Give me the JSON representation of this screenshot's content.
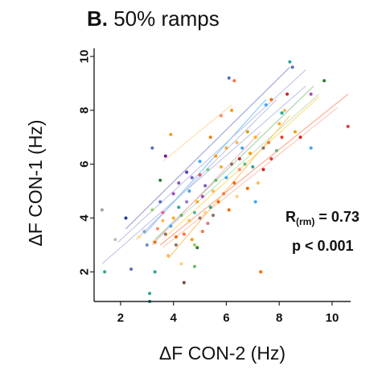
{
  "title_prefix": "B.",
  "title_text": " 50% ramps",
  "stats": {
    "r_label": "R",
    "r_sub": "(rm)",
    "r_value": " = 0.73",
    "p_text": "p < 0.001"
  },
  "chart_data": {
    "type": "scatter",
    "xlabel": "ΔF CON-2  (Hz)",
    "ylabel": "ΔF CON-1  (Hz)",
    "xlim": [
      1.0,
      10.7
    ],
    "ylim": [
      0.9,
      10.3
    ],
    "xticks": [
      2,
      4,
      6,
      8,
      10
    ],
    "yticks": [
      2,
      4,
      6,
      8,
      10
    ],
    "grid": false,
    "points": [
      {
        "x": 1.3,
        "y": 4.3,
        "c": "#95a5a6"
      },
      {
        "x": 1.4,
        "y": 2.0,
        "c": "#26a69a"
      },
      {
        "x": 1.8,
        "y": 3.2,
        "c": "#bdbdbd"
      },
      {
        "x": 2.2,
        "y": 4.0,
        "c": "#283593"
      },
      {
        "x": 2.4,
        "y": 2.1,
        "c": "#5c6bc0"
      },
      {
        "x": 2.7,
        "y": 3.3,
        "c": "#ffe082"
      },
      {
        "x": 2.9,
        "y": 3.5,
        "c": "#90a4ae"
      },
      {
        "x": 3.0,
        "y": 3.0,
        "c": "#7986cb"
      },
      {
        "x": 3.1,
        "y": 1.2,
        "c": "#26a69a"
      },
      {
        "x": 3.1,
        "y": 0.9,
        "c": "#00838f"
      },
      {
        "x": 3.2,
        "y": 4.3,
        "c": "#9ccc65"
      },
      {
        "x": 3.2,
        "y": 6.6,
        "c": "#5c6bc0"
      },
      {
        "x": 3.3,
        "y": 2.0,
        "c": "#26a69a"
      },
      {
        "x": 3.3,
        "y": 3.1,
        "c": "#ef6c00"
      },
      {
        "x": 3.4,
        "y": 3.6,
        "c": "#ff8a65"
      },
      {
        "x": 3.5,
        "y": 5.4,
        "c": "#2e7d32"
      },
      {
        "x": 3.5,
        "y": 4.6,
        "c": "#5c6bc0"
      },
      {
        "x": 3.6,
        "y": 3.9,
        "c": "#ffb74d"
      },
      {
        "x": 3.6,
        "y": 4.2,
        "c": "#f06292"
      },
      {
        "x": 3.7,
        "y": 6.3,
        "c": "#6a1b9a"
      },
      {
        "x": 3.7,
        "y": 3.4,
        "c": "#8d6e63"
      },
      {
        "x": 3.8,
        "y": 2.6,
        "c": "#ffb74d"
      },
      {
        "x": 3.9,
        "y": 3.7,
        "c": "#42a5f5"
      },
      {
        "x": 3.9,
        "y": 7.1,
        "c": "#ff9800"
      },
      {
        "x": 4.0,
        "y": 4.0,
        "c": "#ffa726"
      },
      {
        "x": 4.0,
        "y": 4.9,
        "c": "#ab47bc"
      },
      {
        "x": 4.1,
        "y": 3.3,
        "c": "#ef6c00"
      },
      {
        "x": 4.1,
        "y": 3.0,
        "c": "#8d6e63"
      },
      {
        "x": 4.2,
        "y": 5.3,
        "c": "#7e57c2"
      },
      {
        "x": 4.2,
        "y": 4.4,
        "c": "#26a69a"
      },
      {
        "x": 4.3,
        "y": 2.3,
        "c": "#ffcc80"
      },
      {
        "x": 4.3,
        "y": 4.1,
        "c": "#66bb6a"
      },
      {
        "x": 4.4,
        "y": 1.6,
        "c": "#6d4c41"
      },
      {
        "x": 4.4,
        "y": 3.4,
        "c": "#ff7043"
      },
      {
        "x": 4.5,
        "y": 5.7,
        "c": "#5e35b1"
      },
      {
        "x": 4.5,
        "y": 4.6,
        "c": "#9575cd"
      },
      {
        "x": 4.6,
        "y": 5.0,
        "c": "#42a5f5"
      },
      {
        "x": 4.6,
        "y": 3.9,
        "c": "#ffb74d"
      },
      {
        "x": 4.7,
        "y": 3.2,
        "c": "#ff9800"
      },
      {
        "x": 4.7,
        "y": 5.5,
        "c": "#7e57c2"
      },
      {
        "x": 4.8,
        "y": 4.2,
        "c": "#4db6ac"
      },
      {
        "x": 4.8,
        "y": 2.2,
        "c": "#66bb6a"
      },
      {
        "x": 4.8,
        "y": 3.0,
        "c": "#9ccc65"
      },
      {
        "x": 4.9,
        "y": 2.9,
        "c": "#2e7d32"
      },
      {
        "x": 4.9,
        "y": 4.6,
        "c": "#ffa726"
      },
      {
        "x": 5.0,
        "y": 5.6,
        "c": "#ef5350"
      },
      {
        "x": 5.0,
        "y": 6.1,
        "c": "#42a5f5"
      },
      {
        "x": 5.0,
        "y": 4.0,
        "c": "#8d6e63"
      },
      {
        "x": 5.1,
        "y": 4.8,
        "c": "#ab47bc"
      },
      {
        "x": 5.1,
        "y": 3.5,
        "c": "#ff7043"
      },
      {
        "x": 5.2,
        "y": 5.2,
        "c": "#7e57c2"
      },
      {
        "x": 5.2,
        "y": 4.2,
        "c": "#ffcc80"
      },
      {
        "x": 5.3,
        "y": 5.8,
        "c": "#81c784"
      },
      {
        "x": 5.3,
        "y": 3.8,
        "c": "#e57373"
      },
      {
        "x": 5.4,
        "y": 7.0,
        "c": "#f57c00"
      },
      {
        "x": 5.4,
        "y": 4.4,
        "c": "#26a69a"
      },
      {
        "x": 5.5,
        "y": 5.0,
        "c": "#ffb74d"
      },
      {
        "x": 5.5,
        "y": 4.1,
        "c": "#8d6e63"
      },
      {
        "x": 5.6,
        "y": 6.3,
        "c": "#ff9800"
      },
      {
        "x": 5.6,
        "y": 5.4,
        "c": "#66bb6a"
      },
      {
        "x": 5.7,
        "y": 4.6,
        "c": "#ef6c00"
      },
      {
        "x": 5.8,
        "y": 7.8,
        "c": "#ff8a65"
      },
      {
        "x": 5.8,
        "y": 5.9,
        "c": "#ffa726"
      },
      {
        "x": 5.9,
        "y": 4.9,
        "c": "#ff7043"
      },
      {
        "x": 6.0,
        "y": 6.6,
        "c": "#f9a825"
      },
      {
        "x": 6.0,
        "y": 5.5,
        "c": "#42a5f5"
      },
      {
        "x": 6.1,
        "y": 4.3,
        "c": "#ef6c00"
      },
      {
        "x": 6.1,
        "y": 9.2,
        "c": "#5c6bc0"
      },
      {
        "x": 6.2,
        "y": 8.0,
        "c": "#ff9800"
      },
      {
        "x": 6.2,
        "y": 6.0,
        "c": "#8d6e63"
      },
      {
        "x": 6.3,
        "y": 9.1,
        "c": "#ff7043"
      },
      {
        "x": 6.3,
        "y": 5.3,
        "c": "#ef6c00"
      },
      {
        "x": 6.4,
        "y": 6.8,
        "c": "#ffb74d"
      },
      {
        "x": 6.4,
        "y": 4.8,
        "c": "#ffcc80"
      },
      {
        "x": 6.5,
        "y": 6.2,
        "c": "#c62828"
      },
      {
        "x": 6.5,
        "y": 5.8,
        "c": "#ff8a65"
      },
      {
        "x": 6.6,
        "y": 6.6,
        "c": "#42a5f5"
      },
      {
        "x": 6.7,
        "y": 6.0,
        "c": "#66bb6a"
      },
      {
        "x": 6.8,
        "y": 7.2,
        "c": "#d4a017"
      },
      {
        "x": 6.8,
        "y": 5.1,
        "c": "#ef6c00"
      },
      {
        "x": 6.9,
        "y": 6.4,
        "c": "#ff9800"
      },
      {
        "x": 7.0,
        "y": 5.9,
        "c": "#26a69a"
      },
      {
        "x": 7.1,
        "y": 7.0,
        "c": "#ffa726"
      },
      {
        "x": 7.1,
        "y": 4.6,
        "c": "#42a5f5"
      },
      {
        "x": 7.2,
        "y": 5.3,
        "c": "#ffb74d"
      },
      {
        "x": 7.3,
        "y": 2.0,
        "c": "#ef6c00"
      },
      {
        "x": 7.4,
        "y": 5.8,
        "c": "#c62828"
      },
      {
        "x": 7.4,
        "y": 6.6,
        "c": "#8d6e63"
      },
      {
        "x": 7.5,
        "y": 8.2,
        "c": "#42a5f5"
      },
      {
        "x": 7.6,
        "y": 6.8,
        "c": "#ff7043"
      },
      {
        "x": 7.7,
        "y": 6.2,
        "c": "#e53935"
      },
      {
        "x": 7.7,
        "y": 8.4,
        "c": "#ef6c00"
      },
      {
        "x": 7.9,
        "y": 6.5,
        "c": "#66bb6a"
      },
      {
        "x": 8.0,
        "y": 7.5,
        "c": "#ffa726"
      },
      {
        "x": 8.1,
        "y": 7.0,
        "c": "#e53935"
      },
      {
        "x": 8.1,
        "y": 7.9,
        "c": "#26a69a"
      },
      {
        "x": 8.2,
        "y": 8.0,
        "c": "#ffb74d"
      },
      {
        "x": 8.3,
        "y": 8.6,
        "c": "#c62828"
      },
      {
        "x": 8.4,
        "y": 9.8,
        "c": "#26a69a"
      },
      {
        "x": 8.5,
        "y": 9.6,
        "c": "#5c6bc0"
      },
      {
        "x": 8.6,
        "y": 7.2,
        "c": "#ff9800"
      },
      {
        "x": 8.8,
        "y": 7.0,
        "c": "#c62828"
      },
      {
        "x": 9.2,
        "y": 6.6,
        "c": "#42a5f5"
      },
      {
        "x": 9.2,
        "y": 8.6,
        "c": "#ab47bc"
      },
      {
        "x": 9.7,
        "y": 9.1,
        "c": "#2e7d32"
      },
      {
        "x": 10.6,
        "y": 7.4,
        "c": "#e53935"
      }
    ],
    "lines": [
      {
        "x1": 1.3,
        "y1": 2.3,
        "x2": 9.0,
        "y2": 8.9,
        "c": "#c5cae9"
      },
      {
        "x1": 1.9,
        "y1": 3.1,
        "x2": 9.0,
        "y2": 9.5,
        "c": "#c5cae9"
      },
      {
        "x1": 2.2,
        "y1": 3.6,
        "x2": 8.4,
        "y2": 9.6,
        "c": "#9fa8da"
      },
      {
        "x1": 2.6,
        "y1": 3.2,
        "x2": 7.9,
        "y2": 8.4,
        "c": "#c5cae9"
      },
      {
        "x1": 2.9,
        "y1": 3.4,
        "x2": 7.5,
        "y2": 8.4,
        "c": "#90caf9"
      },
      {
        "x1": 3.2,
        "y1": 3.1,
        "x2": 9.5,
        "y2": 8.6,
        "c": "#c8e6c9"
      },
      {
        "x1": 3.3,
        "y1": 3.2,
        "x2": 9.3,
        "y2": 8.9,
        "c": "#a5d6a7"
      },
      {
        "x1": 3.5,
        "y1": 3.0,
        "x2": 10.6,
        "y2": 8.6,
        "c": "#ffab91"
      },
      {
        "x1": 3.6,
        "y1": 2.9,
        "x2": 10.2,
        "y2": 8.1,
        "c": "#ffccbc"
      },
      {
        "x1": 3.7,
        "y1": 3.3,
        "x2": 9.5,
        "y2": 8.5,
        "c": "#ffe082"
      },
      {
        "x1": 3.8,
        "y1": 2.5,
        "x2": 8.4,
        "y2": 7.8,
        "c": "#ffcc80"
      },
      {
        "x1": 3.6,
        "y1": 6.1,
        "x2": 6.2,
        "y2": 8.2,
        "c": "#ffe0b2"
      },
      {
        "x1": 3.2,
        "y1": 3.0,
        "x2": 7.3,
        "y2": 7.2,
        "c": "#f8bbd0"
      }
    ]
  }
}
